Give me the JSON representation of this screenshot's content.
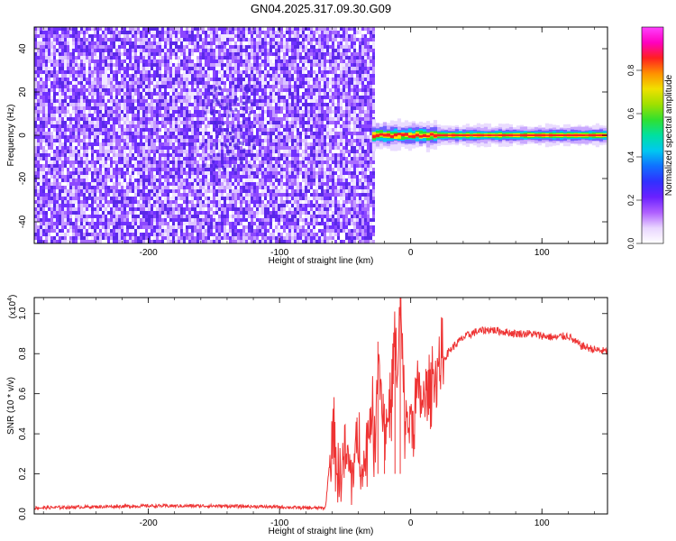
{
  "title": "GN04.2025.317.09.30.G09",
  "chart_data": [
    {
      "type": "heatmap",
      "title": "GN04.2025.317.09.30.G09",
      "xlabel": "Height of straight line (km)",
      "ylabel": "Frequency (Hz)",
      "xlim": [
        -287,
        150
      ],
      "ylim": [
        -50,
        50
      ],
      "xticks": [
        -200,
        -100,
        0,
        100
      ],
      "yticks": [
        -40,
        -20,
        0,
        20,
        40
      ],
      "noise_region_x": [
        -287,
        -28
      ],
      "signal_band": {
        "frequency_hz": 0,
        "x_range": [
          -28,
          150
        ]
      },
      "colorbar": {
        "label": "Normalized spectral amplitude",
        "range": [
          0,
          1
        ],
        "ticks": [
          0.0,
          0.2,
          0.4,
          0.6,
          0.8
        ],
        "colors": [
          "#ffffff",
          "#e9d6ff",
          "#b060ff",
          "#6a20ff",
          "#3030ff",
          "#1070ff",
          "#00c8f0",
          "#00e0a0",
          "#30e030",
          "#a0e000",
          "#f0e000",
          "#ff9000",
          "#ff2020",
          "#ff00c0",
          "#ff40ff"
        ]
      }
    },
    {
      "type": "line",
      "xlabel": "Height of straight line (km)",
      "ylabel": "SNR (10 * v/v)",
      "y_multiplier": "(x10",
      "y_multiplier_exp": "4",
      "xlim": [
        -287,
        150
      ],
      "ylim": [
        0,
        1.08
      ],
      "xticks": [
        -200,
        -100,
        0,
        100
      ],
      "yticks": [
        0.0,
        0.2,
        0.4,
        0.6,
        0.8,
        1.0
      ],
      "series": [
        {
          "color": "#ee3333",
          "x": [
            -287,
            -250,
            -200,
            -150,
            -100,
            -80,
            -65,
            -62,
            -58,
            -55,
            -50,
            -45,
            -40,
            -35,
            -30,
            -27,
            -25,
            -20,
            -15,
            -12,
            -10,
            -8,
            -5,
            0,
            5,
            10,
            15,
            20,
            30,
            40,
            50,
            60,
            70,
            80,
            90,
            100,
            110,
            120,
            125,
            130,
            140,
            150
          ],
          "y": [
            0.03,
            0.035,
            0.04,
            0.04,
            0.035,
            0.03,
            0.03,
            0.25,
            0.38,
            0.15,
            0.28,
            0.2,
            0.35,
            0.22,
            0.55,
            0.3,
            0.85,
            0.4,
            0.55,
            0.9,
            0.6,
            1.08,
            0.5,
            0.45,
            0.6,
            0.55,
            0.65,
            0.72,
            0.82,
            0.88,
            0.91,
            0.92,
            0.91,
            0.9,
            0.9,
            0.89,
            0.88,
            0.89,
            0.86,
            0.84,
            0.82,
            0.81
          ]
        }
      ]
    }
  ]
}
